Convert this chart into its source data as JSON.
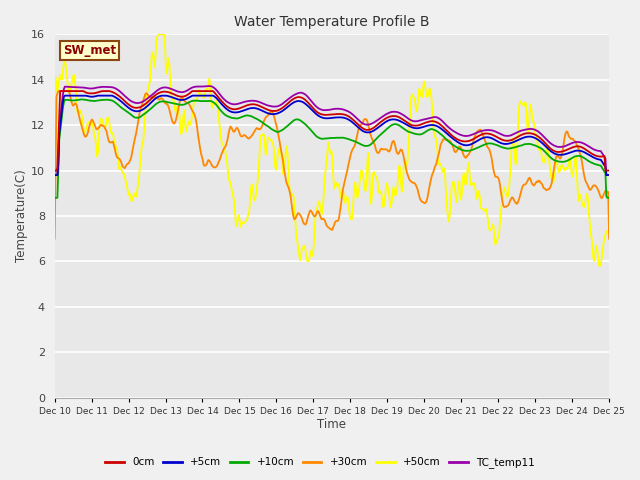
{
  "title": "Water Temperature Profile B",
  "xlabel": "Time",
  "ylabel": "Temperature(C)",
  "ylim": [
    0,
    16
  ],
  "yticks": [
    0,
    2,
    4,
    6,
    8,
    10,
    12,
    14,
    16
  ],
  "fig_bg": "#f0f0f0",
  "plot_bg": "#e8e8e8",
  "annotation_text": "SW_met",
  "annotation_color": "#8b0000",
  "annotation_bg": "#ffffcc",
  "annotation_border": "#8b4513",
  "colors": {
    "0cm": "#cc0000",
    "+5cm": "#0000cc",
    "+10cm": "#00aa00",
    "+30cm": "#ff8800",
    "+50cm": "#ffff00",
    "TC_temp11": "#9900aa"
  },
  "days": [
    "Dec 10",
    "Dec 11",
    "Dec 12",
    "Dec 13",
    "Dec 14",
    "Dec 15",
    "Dec 16",
    "Dec 17",
    "Dec 18",
    "Dec 19",
    "Dec 20",
    "Dec 21",
    "Dec 22",
    "Dec 23",
    "Dec 24",
    "Dec 25"
  ]
}
